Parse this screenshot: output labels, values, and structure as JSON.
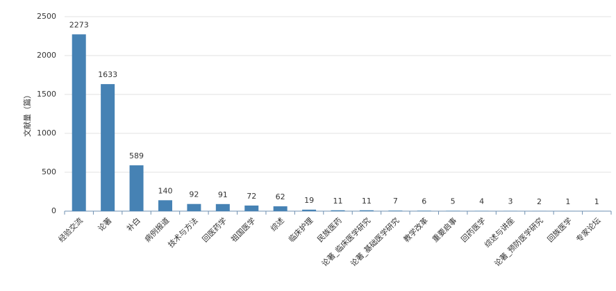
{
  "chart_data": {
    "type": "bar",
    "y_label": "文献量（篇）",
    "categories": [
      "经验交流",
      "论著",
      "补白",
      "病例报道",
      "技术与方法",
      "回医药学",
      "祖国医学",
      "综述",
      "临床护理",
      "民族医药",
      "论著_临床医学研究",
      "论著_基础医学研究",
      "教学改革",
      "重要启事",
      "回药医学",
      "综述与讲座",
      "论著_预防医学研究",
      "回族医学",
      "专家论坛"
    ],
    "values": [
      2273,
      1633,
      589,
      140,
      92,
      91,
      72,
      62,
      19,
      11,
      11,
      7,
      6,
      5,
      4,
      3,
      2,
      1,
      1
    ],
    "color": "#4682b4",
    "ylim": [
      0,
      2500
    ],
    "yticks": [
      0,
      500,
      1000,
      1500,
      2000,
      2500
    ],
    "grid": true
  }
}
